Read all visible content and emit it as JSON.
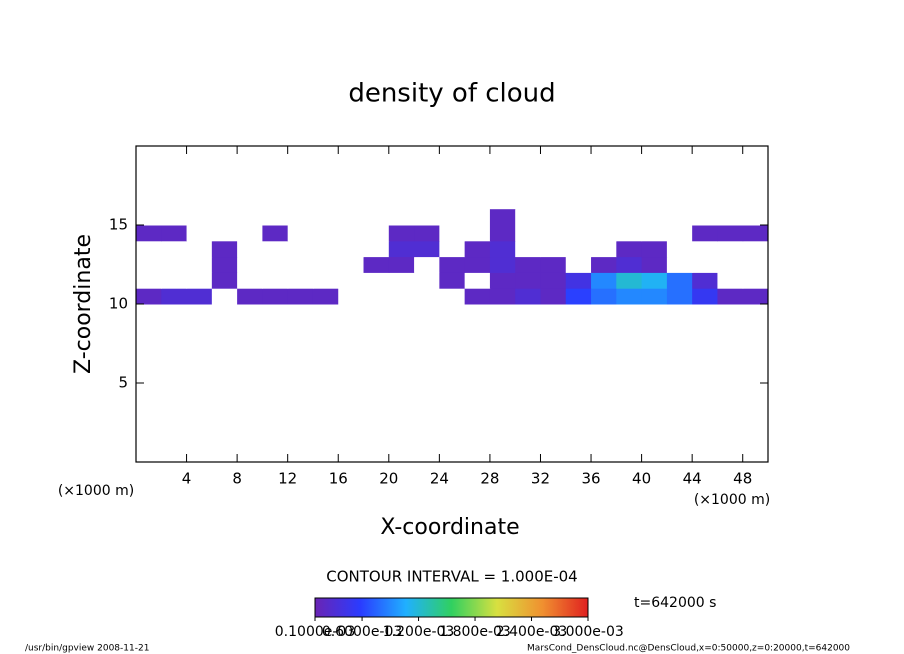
{
  "chart_data": {
    "type": "contour",
    "title": "density of cloud",
    "x_label": "X-coordinate",
    "y_label": "Z-coordinate",
    "x_unit": "(×1000 m)",
    "y_unit": "(×1000 m)",
    "xlim": [
      0,
      50
    ],
    "ylim": [
      0,
      20
    ],
    "xticks": [
      4,
      8,
      12,
      16,
      20,
      24,
      28,
      32,
      36,
      40,
      44,
      48
    ],
    "yticks": [
      5,
      10,
      15
    ],
    "x": [
      1,
      3,
      5,
      7,
      9,
      11,
      13,
      15,
      17,
      19,
      21,
      23,
      25,
      27,
      29,
      31,
      33,
      35,
      37,
      39,
      41,
      43,
      45,
      47,
      49
    ],
    "z": [
      10.5,
      11.5,
      12.5,
      13.5,
      14.5,
      15.5
    ],
    "values": [
      [
        0.0002,
        0.0003,
        0.0003,
        0,
        0.0002,
        0.0002,
        0.0002,
        0.0002,
        0,
        0,
        0,
        0,
        0,
        0.0002,
        0.0002,
        0.0003,
        0.0002,
        0.0006,
        0.0008,
        0.0009,
        0.0009,
        0.0008,
        0.0005,
        0.0002,
        0.0002
      ],
      [
        0,
        0,
        0,
        0.0002,
        0,
        0,
        0,
        0,
        0,
        0,
        0,
        0,
        0.0002,
        0,
        0.0002,
        0.0002,
        0.0002,
        0.0004,
        0.0009,
        0.0012,
        0.0011,
        0.0008,
        0.0003,
        0,
        0
      ],
      [
        0,
        0,
        0,
        0.0002,
        0,
        0,
        0,
        0,
        0,
        0.0002,
        0.0002,
        0,
        0.0002,
        0.0002,
        0.0003,
        0.0002,
        0.0002,
        0,
        0.0002,
        0.0003,
        0.0002,
        0,
        0,
        0,
        0
      ],
      [
        0,
        0,
        0,
        0.0002,
        0,
        0,
        0,
        0,
        0,
        0,
        0.0003,
        0.0003,
        0,
        0.0002,
        0.0003,
        0,
        0,
        0,
        0,
        0.0002,
        0.0002,
        0,
        0,
        0,
        0
      ],
      [
        0.0002,
        0.0002,
        0,
        0,
        0,
        0.0002,
        0,
        0,
        0,
        0,
        0.0002,
        0.0002,
        0,
        0,
        0.0002,
        0,
        0,
        0,
        0,
        0,
        0,
        0,
        0.0002,
        0.0002,
        0.0002
      ],
      [
        0,
        0,
        0,
        0,
        0,
        0,
        0,
        0,
        0,
        0,
        0,
        0,
        0,
        0,
        0.0002,
        0,
        0,
        0,
        0,
        0,
        0,
        0,
        0,
        0,
        0
      ]
    ],
    "contour_interval": "CONTOUR INTERVAL = 1.000E-04",
    "time": "t=642000 s",
    "colorbar": {
      "lim": [
        0.0001,
        0.003
      ],
      "ticks": [
        {
          "value": 0.0001,
          "label": "0.1000e-03"
        },
        {
          "value": 0.0006,
          "label": "0.6000e-03"
        },
        {
          "value": 0.0012,
          "label": "1.200e-03"
        },
        {
          "value": 0.0018,
          "label": "1.800e-03"
        },
        {
          "value": 0.0024,
          "label": "2.400e-03"
        },
        {
          "value": 0.003,
          "label": "3.000e-03"
        }
      ],
      "colors": [
        "#6a24b4",
        "#2a3cff",
        "#20b0ff",
        "#30d060",
        "#d8e040",
        "#f09030",
        "#e02020"
      ]
    },
    "footer_left": "/usr/bin/gpview  2008-11-21",
    "footer_right": "MarsCond_DensCloud.nc@DensCloud,x=0:50000,z=0:20000,t=642000"
  }
}
